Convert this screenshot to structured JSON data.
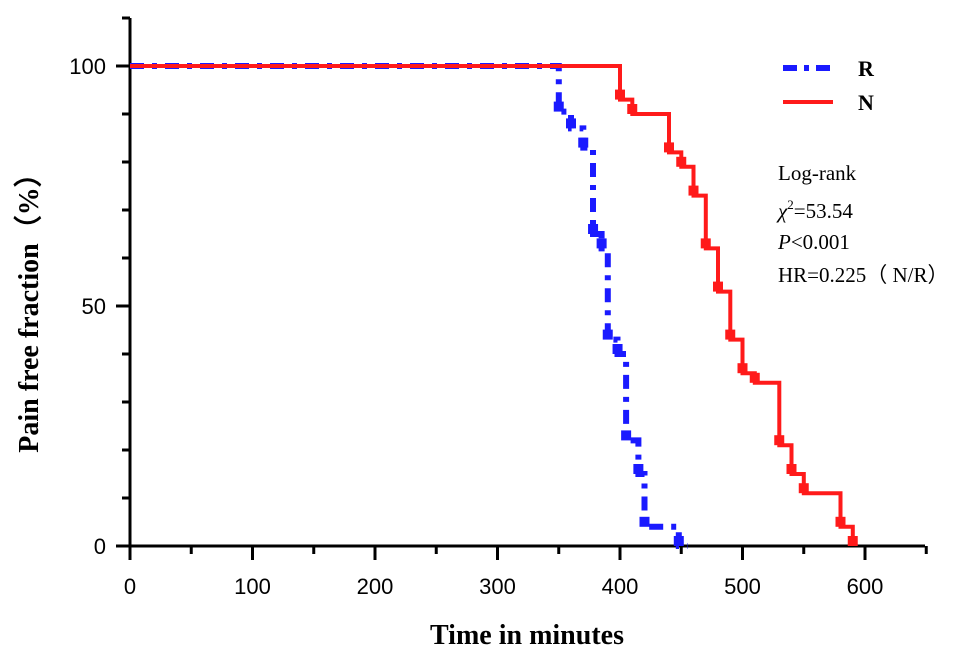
{
  "chart_data": {
    "type": "line",
    "subtype": "kaplan-meier step",
    "title": "",
    "xlabel": "Time in minutes",
    "ylabel": "Pain free fraction（%）",
    "xlim": [
      0,
      650
    ],
    "ylim": [
      0,
      100
    ],
    "x_ticks": [
      "0",
      "100",
      "200",
      "300",
      "400",
      "500",
      "600"
    ],
    "y_ticks": [
      "0",
      "50",
      "100"
    ],
    "grid": false,
    "legend_position": "top-right",
    "series": [
      {
        "name": "R",
        "color": "#1a1aff",
        "line_style": "dash-dot",
        "x": [
          0,
          350,
          350,
          360,
          360,
          370,
          370,
          378,
          378,
          385,
          385,
          390,
          390,
          398,
          398,
          405,
          405,
          415,
          415,
          420,
          420,
          448,
          448,
          455
        ],
        "y": [
          100,
          100,
          90.5,
          90.5,
          87,
          87,
          83,
          83,
          65,
          65,
          62,
          62,
          43,
          43,
          40,
          40,
          22,
          22,
          15,
          15,
          4,
          4,
          0,
          0
        ]
      },
      {
        "name": "N",
        "color": "#ff1a1a",
        "line_style": "solid",
        "x": [
          0,
          400,
          400,
          410,
          410,
          440,
          440,
          450,
          450,
          460,
          460,
          470,
          470,
          480,
          480,
          490,
          490,
          500,
          500,
          510,
          510,
          530,
          530,
          540,
          540,
          550,
          550,
          580,
          580,
          590,
          590
        ],
        "y": [
          100,
          100,
          93,
          93,
          90,
          90,
          82,
          82,
          79,
          79,
          73,
          73,
          62,
          62,
          53,
          53,
          43,
          43,
          36,
          36,
          34,
          34,
          21,
          21,
          15,
          15,
          11,
          11,
          4,
          4,
          0
        ]
      }
    ],
    "annotations": {
      "test": "Log-rank",
      "chi_symbol": "χ",
      "chi_exp": "2",
      "chi_value": "=53.54",
      "p_symbol": "P",
      "p_value": "<0.001",
      "hr": "HR=0.225（ N/R）"
    }
  }
}
